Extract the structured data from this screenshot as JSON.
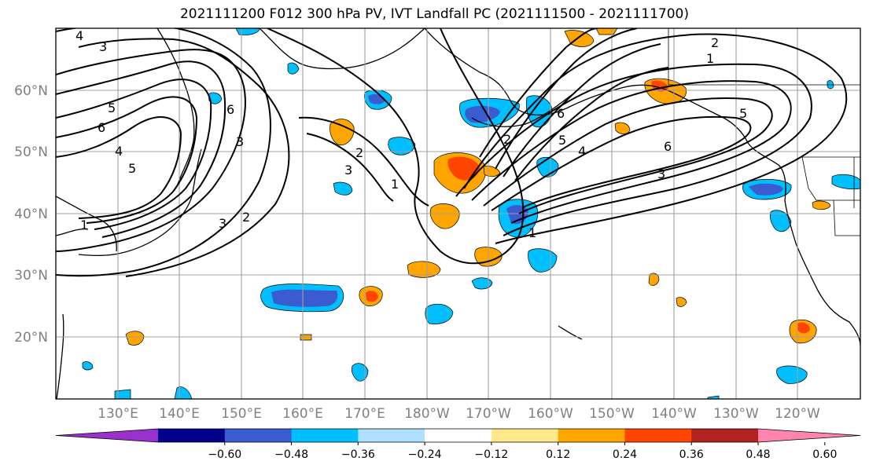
{
  "title": "2021111200 F012 300 hPa PV, IVT Landfall PC (2021111500 - 2021111700)",
  "lat_labels": [
    "60°N",
    "50°N",
    "40°N",
    "30°N",
    "20°N"
  ],
  "lon_labels": [
    "130°E",
    "140°E",
    "150°E",
    "160°E",
    "170°E",
    "180°W",
    "170°W",
    "160°W",
    "150°W",
    "140°W",
    "130°W",
    "120°W"
  ],
  "colorbar": {
    "colors": [
      "#9932cc",
      "#00008b",
      "#3b5bd0",
      "#00bfff",
      "#b0e0ff",
      "#ffffff",
      "#ffe98a",
      "#ffa500",
      "#ff4500",
      "#b22222",
      "#ff85b0"
    ],
    "tick_labels": [
      "−0.60",
      "−0.48",
      "−0.36",
      "−0.24",
      "−0.12",
      "0.12",
      "0.24",
      "0.36",
      "0.48",
      "0.60"
    ]
  },
  "contour_labels": [
    "4",
    "3",
    "5",
    "6",
    "4",
    "5",
    "6",
    "3",
    "2",
    "3",
    "2",
    "1",
    "1",
    "6",
    "5",
    "4",
    "3",
    "2",
    "1",
    "2",
    "1",
    "6",
    "5",
    "3"
  ]
}
